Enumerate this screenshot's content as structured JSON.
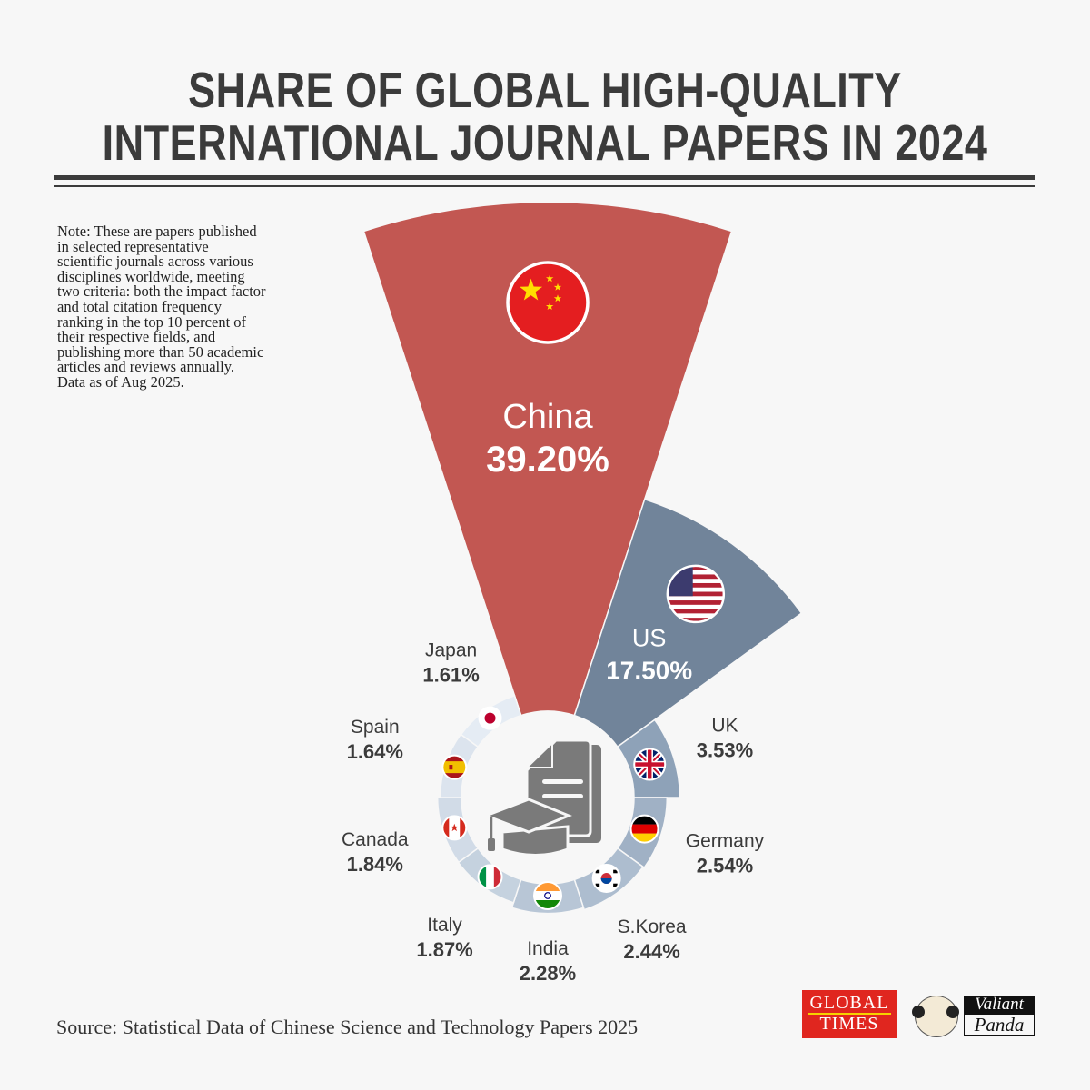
{
  "title": {
    "line1": "SHARE OF GLOBAL HIGH-QUALITY",
    "line2": "INTERNATIONAL JOURNAL PAPERS IN 2024"
  },
  "note": "Note: These are papers published in selected representative scientific journals across various disciplines worldwide, meeting two criteria: both the impact factor and total citation frequency ranking in the top 10 percent of their respective fields, and publishing more than 50 academic articles and reviews annually. Data as of Aug 2025.",
  "source": "Source: Statistical Data of Chinese Science and Technology Papers 2025",
  "logos": {
    "global_times": {
      "line1": "GLOBAL",
      "line2": "TIMES"
    },
    "valiant_panda": {
      "line1": "Valiant",
      "line2": "Panda"
    }
  },
  "chart_data": {
    "type": "pie",
    "subtype": "polar-area",
    "title": "Share of Global High-Quality International Journal Papers in 2024",
    "unit": "%",
    "categories": [
      "China",
      "US",
      "UK",
      "Germany",
      "S.Korea",
      "India",
      "Italy",
      "Canada",
      "Spain",
      "Japan"
    ],
    "values": [
      39.2,
      17.5,
      3.53,
      2.54,
      2.44,
      2.28,
      1.87,
      1.84,
      1.64,
      1.61
    ],
    "labels": [
      "39.20%",
      "17.50%",
      "3.53%",
      "2.54%",
      "2.44%",
      "2.28%",
      "1.87%",
      "1.84%",
      "1.64%",
      "1.61%"
    ],
    "flags": [
      "cn",
      "us",
      "gb",
      "de",
      "kr",
      "in",
      "it",
      "ca",
      "es",
      "jp"
    ],
    "colors": [
      "#c25752",
      "#71849a",
      "#8ea2b8",
      "#a0b1c5",
      "#adbdcf",
      "#b8c6d6",
      "#c5d2df",
      "#d1dbe7",
      "#dce4ee",
      "#e5ecf4"
    ],
    "center_icon": "graduation-cap-document-icon"
  }
}
